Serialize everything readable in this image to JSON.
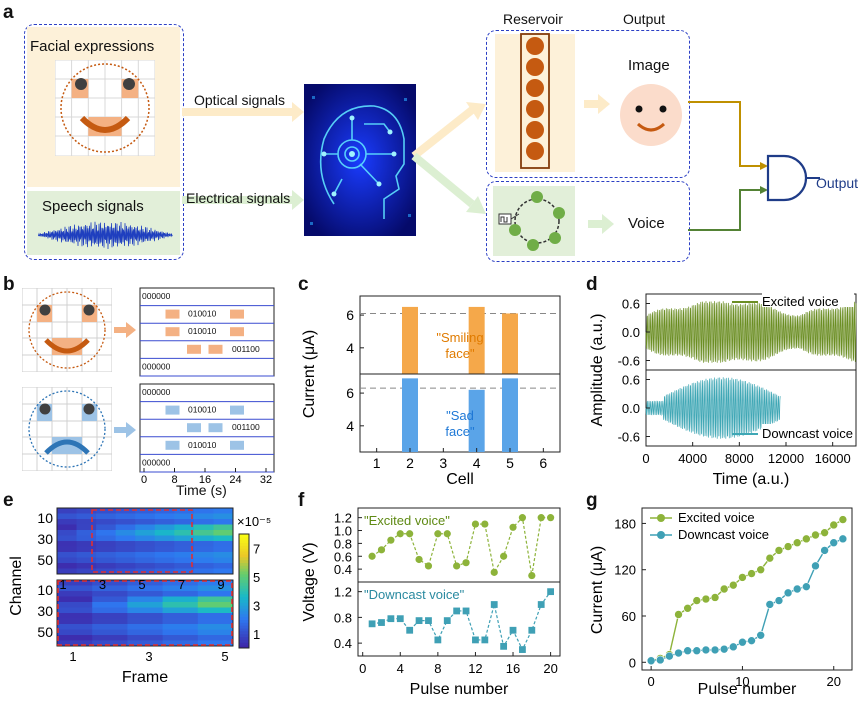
{
  "panel_labels": {
    "a": "a",
    "b": "b",
    "c": "c",
    "d": "d",
    "e": "e",
    "f": "f",
    "g": "g"
  },
  "panel_a": {
    "facial_title": "Facial expressions",
    "speech_title": "Speech signals",
    "optical_label": "Optical signals",
    "electrical_label": "Electrical signals",
    "reservoir_label": "Reservoir",
    "output_label": "Output",
    "image_label": "Image",
    "voice_label": "Voice",
    "gate_output_label": "Output"
  },
  "panel_b": {
    "smile_codes": [
      "000000",
      "010010",
      "010010",
      "001100",
      "000000"
    ],
    "sad_codes": [
      "000000",
      "010010",
      "001100",
      "010010",
      "000000"
    ],
    "x_ticks": [
      "0",
      "8",
      "16",
      "24",
      "32"
    ],
    "x_label": "Time (s)"
  },
  "chart_data": [
    {
      "panel": "c",
      "type": "bar",
      "categories": [
        "1",
        "2",
        "3",
        "4",
        "5",
        "6"
      ],
      "series": [
        {
          "name": "\"Smiling face\"",
          "color": "#f5a84a",
          "values": [
            2.4,
            6.5,
            2.4,
            6.5,
            6.1,
            2.4
          ]
        },
        {
          "name": "\"Sad face\"",
          "color": "#5aa4e8",
          "values": [
            2.4,
            6.9,
            2.4,
            6.2,
            6.9,
            2.4
          ]
        }
      ],
      "xlabel": "Cell",
      "ylabel": "Current (μA)",
      "ylim": [
        2.4,
        6.8
      ],
      "yticks": [
        "4",
        "6"
      ],
      "dashed_reference": 6.1
    },
    {
      "panel": "d",
      "type": "line",
      "series": [
        {
          "name": "Excited voice",
          "color": "#6b8e23",
          "x_range": [
            0,
            18000
          ],
          "amplitude": 0.65
        },
        {
          "name": "Downcast voice",
          "color": "#3fa7b5",
          "x_range": [
            0,
            11500
          ],
          "amplitude": 0.65
        }
      ],
      "xlabel": "Time (a.u.)",
      "ylabel": "Amplitude (a.u.)",
      "xticks": [
        "0",
        "4000",
        "8000",
        "12000",
        "16000"
      ],
      "yticks": [
        "0.6",
        "0.0",
        "-0.6"
      ],
      "xlim": [
        0,
        18000
      ],
      "ylim": [
        -0.8,
        0.8
      ]
    },
    {
      "panel": "e",
      "type": "heatmap",
      "top": {
        "frames": 9,
        "channels": 60,
        "xticks": [
          "1",
          "3",
          "5",
          "7",
          "9"
        ]
      },
      "bottom": {
        "frames": 5,
        "channels": 60,
        "xticks": [
          "1",
          "3",
          "5"
        ]
      },
      "yticks": [
        "10",
        "30",
        "50"
      ],
      "xlabel": "Frame",
      "ylabel": "Channel",
      "colorbar": {
        "ticks": [
          "1",
          "3",
          "5",
          "7"
        ],
        "scale_label": "×10⁻⁵",
        "range": [
          0,
          8
        ]
      }
    },
    {
      "panel": "f",
      "type": "line",
      "x": [
        1,
        2,
        3,
        4,
        5,
        6,
        7,
        8,
        9,
        10,
        11,
        12,
        13,
        14,
        15,
        16,
        17,
        18,
        19,
        20
      ],
      "series": [
        {
          "name": "\"Excited voice\"",
          "color": "#8db33a",
          "values": [
            0.6,
            0.7,
            0.85,
            0.95,
            0.95,
            0.55,
            0.45,
            0.95,
            0.95,
            0.45,
            0.5,
            1.1,
            1.1,
            0.35,
            0.6,
            1.05,
            1.2,
            0.3,
            1.2,
            1.2
          ]
        },
        {
          "name": "\"Downcast voice\"",
          "color": "#3fa0b5",
          "values": [
            0.7,
            0.72,
            0.78,
            0.78,
            0.6,
            0.75,
            0.75,
            0.45,
            0.75,
            0.9,
            0.9,
            0.45,
            0.45,
            1.0,
            0.35,
            0.6,
            0.3,
            0.6,
            1.0,
            1.2
          ]
        }
      ],
      "xlabel": "Pulse number",
      "ylabel": "Voltage (V)",
      "xticks": [
        "0",
        "4",
        "8",
        "12",
        "16",
        "20"
      ],
      "yticks": [
        "0.4",
        "0.6",
        "0.8",
        "1.0",
        "1.2"
      ],
      "ylim": [
        0.2,
        1.35
      ]
    },
    {
      "panel": "g",
      "type": "line",
      "x": [
        0,
        1,
        2,
        3,
        4,
        5,
        6,
        7,
        8,
        9,
        10,
        11,
        12,
        13,
        14,
        15,
        16,
        17,
        18,
        19,
        20,
        21
      ],
      "series": [
        {
          "name": "Excited voice",
          "color": "#8db33a",
          "values": [
            2,
            5,
            10,
            62,
            70,
            80,
            82,
            84,
            95,
            100,
            110,
            115,
            120,
            135,
            145,
            150,
            155,
            160,
            165,
            168,
            178,
            185
          ]
        },
        {
          "name": "Downcast voice",
          "color": "#3fa0b5",
          "values": [
            2,
            3,
            8,
            12,
            15,
            15,
            16,
            16,
            17,
            20,
            26,
            28,
            35,
            75,
            80,
            90,
            95,
            98,
            125,
            145,
            155,
            160
          ]
        }
      ],
      "xlabel": "Pulse number",
      "ylabel": "Current (μA)",
      "xticks": [
        "0",
        "10",
        "20"
      ],
      "yticks": [
        "0",
        "60",
        "120",
        "180"
      ],
      "xlim": [
        -1,
        22
      ],
      "ylim": [
        -10,
        200
      ]
    }
  ]
}
